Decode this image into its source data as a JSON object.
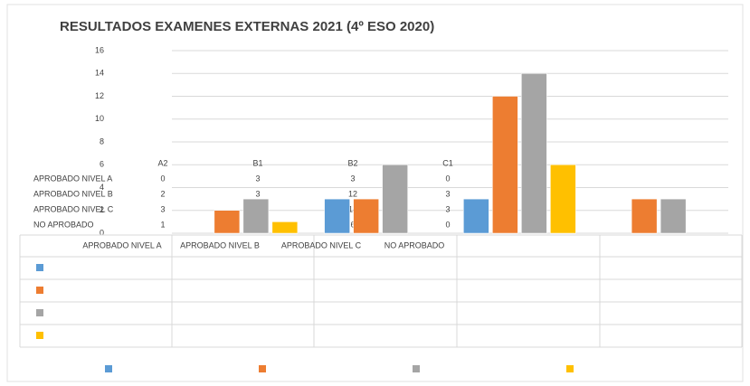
{
  "chart_data": {
    "type": "bar",
    "title": "RESULTADOS EXAMENES EXTERNAS 2021 (4º ESO 2020)",
    "categories": [
      "A2",
      "B1",
      "B2",
      "C1"
    ],
    "series": [
      {
        "name": "APROBADO NIVEL A",
        "color": "#5b9bd5",
        "values": [
          0,
          3,
          3,
          0
        ]
      },
      {
        "name": "APROBADO NIVEL B",
        "color": "#ed7d31",
        "values": [
          2,
          3,
          12,
          3
        ]
      },
      {
        "name": "APROBADO NIVEL C",
        "color": "#a5a5a5",
        "values": [
          3,
          6,
          14,
          3
        ]
      },
      {
        "name": "NO APROBADO",
        "color": "#ffc000",
        "values": [
          1,
          0,
          6,
          0
        ]
      }
    ],
    "ylim": [
      0,
      16
    ],
    "yticks": [
      0,
      2,
      4,
      6,
      8,
      10,
      12,
      14,
      16
    ],
    "grid": true
  }
}
